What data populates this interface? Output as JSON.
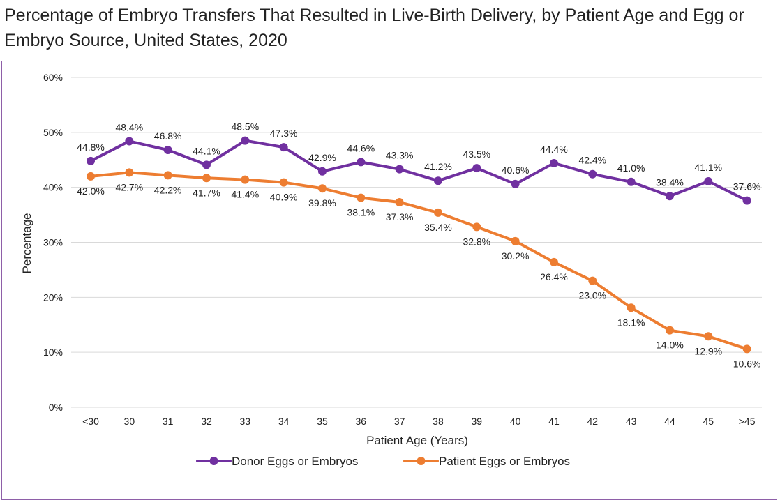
{
  "chart_data": {
    "type": "line",
    "title": "Percentage of Embryo Transfers That Resulted in Live-Birth Delivery, by Patient Age and Egg or Embryo Source, United States, 2020",
    "xlabel": "Patient Age (Years)",
    "ylabel": "Percentage",
    "categories": [
      "<30",
      "30",
      "31",
      "32",
      "33",
      "34",
      "35",
      "36",
      "37",
      "38",
      "39",
      "40",
      "41",
      "42",
      "43",
      "44",
      "45",
      ">45"
    ],
    "ylim": [
      0,
      60
    ],
    "yticks": [
      0,
      10,
      20,
      30,
      40,
      50,
      60
    ],
    "ytick_labels": [
      "0%",
      "10%",
      "20%",
      "30%",
      "40%",
      "50%",
      "60%"
    ],
    "grid": true,
    "legend_position": "bottom",
    "series": [
      {
        "name": "Donor Eggs or Embryos",
        "color": "#7030a0",
        "label_position": "above",
        "values": [
          44.8,
          48.4,
          46.8,
          44.1,
          48.5,
          47.3,
          42.9,
          44.6,
          43.3,
          41.2,
          43.5,
          40.6,
          44.4,
          42.4,
          41.0,
          38.4,
          41.1,
          37.6
        ],
        "labels": [
          "44.8%",
          "48.4%",
          "46.8%",
          "44.1%",
          "48.5%",
          "47.3%",
          "42.9%",
          "44.6%",
          "43.3%",
          "41.2%",
          "43.5%",
          "40.6%",
          "44.4%",
          "42.4%",
          "41.0%",
          "38.4%",
          "41.1%",
          "37.6%"
        ]
      },
      {
        "name": "Patient Eggs or Embryos",
        "color": "#ed7d31",
        "label_position": "below",
        "values": [
          42.0,
          42.7,
          42.2,
          41.7,
          41.4,
          40.9,
          39.8,
          38.1,
          37.3,
          35.4,
          32.8,
          30.2,
          26.4,
          23.0,
          18.1,
          14.0,
          12.9,
          10.6
        ],
        "labels": [
          "42.0%",
          "42.7%",
          "42.2%",
          "41.7%",
          "41.4%",
          "40.9%",
          "39.8%",
          "38.1%",
          "37.3%",
          "35.4%",
          "32.8%",
          "30.2%",
          "26.4%",
          "23.0%",
          "18.1%",
          "14.0%",
          "12.9%",
          "10.6%"
        ]
      }
    ]
  }
}
